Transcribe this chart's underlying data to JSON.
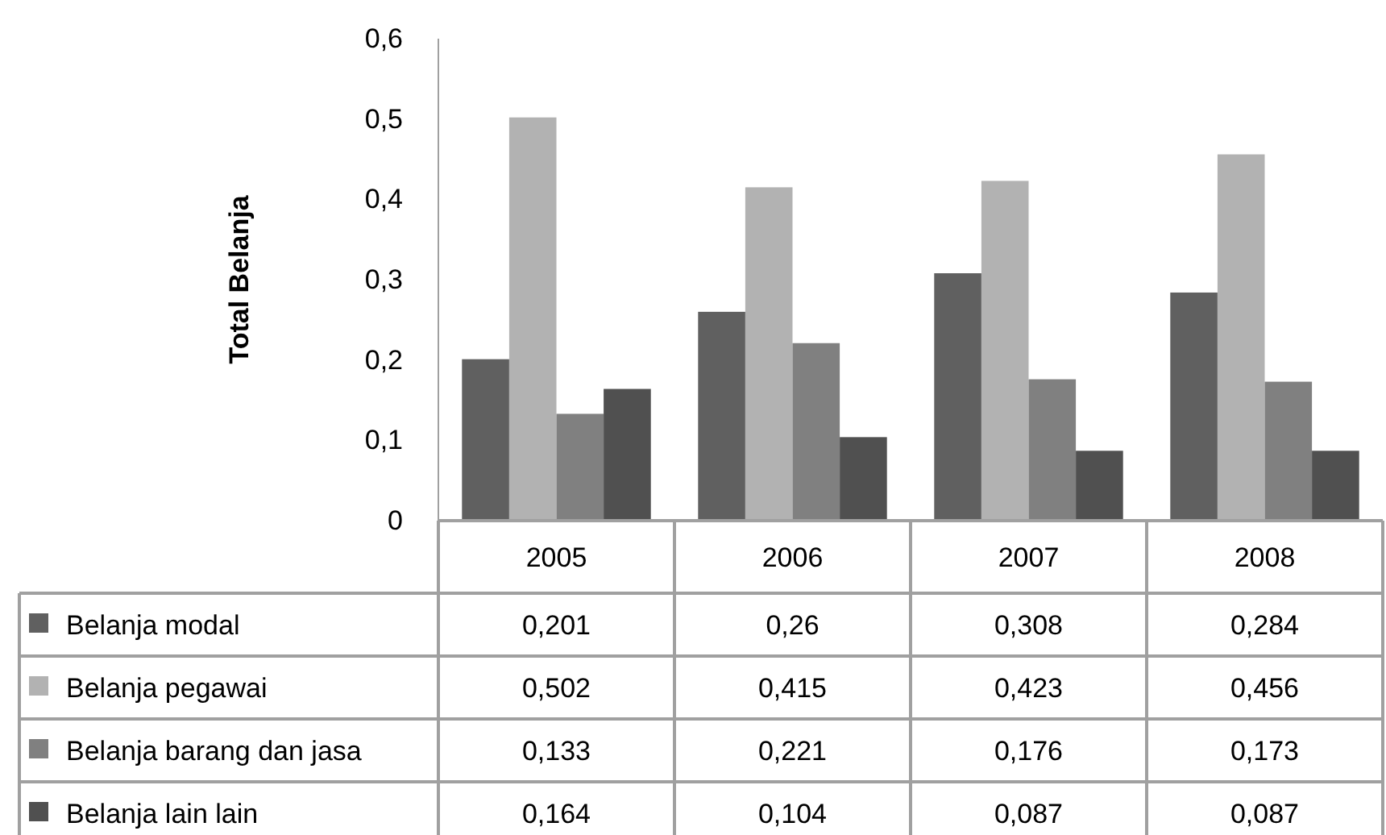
{
  "chart_data": {
    "type": "bar",
    "ylabel": "Total Belanja",
    "categories": [
      "2005",
      "2006",
      "2007",
      "2008"
    ],
    "series": [
      {
        "name": "Belanja modal",
        "color": "#606060",
        "values": [
          0.201,
          0.26,
          0.308,
          0.284
        ],
        "value_labels": [
          "0,201",
          "0,26",
          "0,308",
          "0,284"
        ]
      },
      {
        "name": "Belanja pegawai",
        "color": "#b2b2b2",
        "values": [
          0.502,
          0.415,
          0.423,
          0.456
        ],
        "value_labels": [
          "0,502",
          "0,415",
          "0,423",
          "0,456"
        ]
      },
      {
        "name": "Belanja barang dan jasa",
        "color": "#808080",
        "values": [
          0.133,
          0.221,
          0.176,
          0.173
        ],
        "value_labels": [
          "0,133",
          "0,221",
          "0,176",
          "0,173"
        ]
      },
      {
        "name": "Belanja lain lain",
        "color": "#505050",
        "values": [
          0.164,
          0.104,
          0.087,
          0.087
        ],
        "value_labels": [
          "0,164",
          "0,104",
          "0,087",
          "0,087"
        ]
      }
    ],
    "ylim": [
      0,
      0.6
    ],
    "yticks": [
      0,
      {
        "value": 0.1,
        "label": "0,1"
      },
      {
        "value": 0.2,
        "label": "0,2"
      },
      {
        "value": 0.3,
        "label": "0,3"
      },
      {
        "value": 0.4,
        "label": "0,4"
      },
      {
        "value": 0.5,
        "label": "0,5"
      },
      {
        "value": 0.6,
        "label": "0,6"
      }
    ],
    "legend": "bottom"
  }
}
